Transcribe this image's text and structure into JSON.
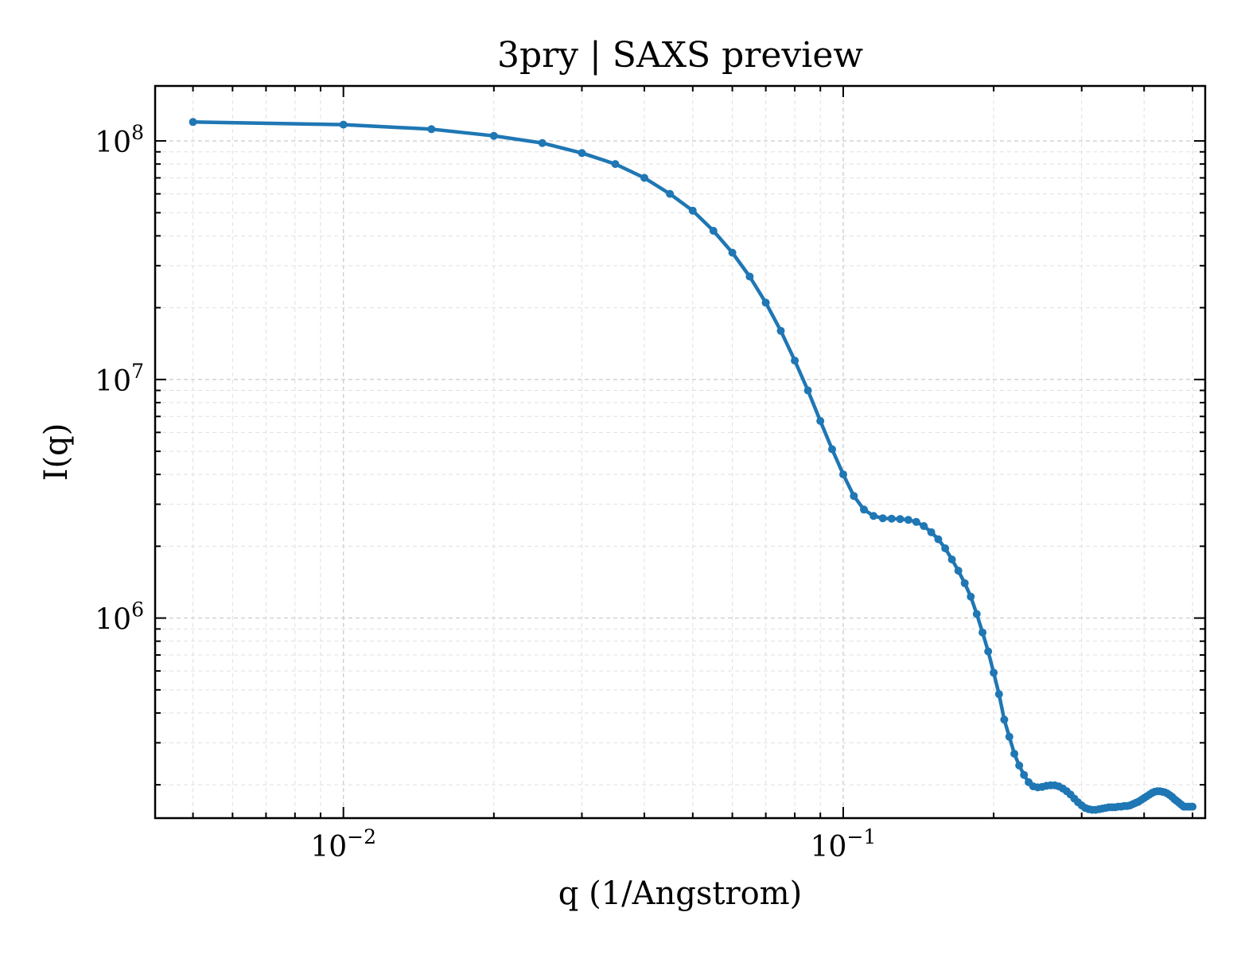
{
  "chart_data": {
    "type": "line",
    "title": "3pry | SAXS preview",
    "xlabel": "q (1/Angstrom)",
    "ylabel": "I(q)",
    "xscale": "log",
    "yscale": "log",
    "xlim": [
      0.0042,
      0.53
    ],
    "ylim": [
      145000,
      170000000
    ],
    "grid": true,
    "legend": "none",
    "series_color": "#1f77b4",
    "x_ticks": [
      {
        "value": 0.01,
        "base": "10",
        "exp": "−2"
      },
      {
        "value": 0.1,
        "base": "10",
        "exp": "−1"
      }
    ],
    "y_ticks": [
      {
        "value": 1000000,
        "base": "10",
        "exp": "6"
      },
      {
        "value": 10000000,
        "base": "10",
        "exp": "7"
      },
      {
        "value": 100000000,
        "base": "10",
        "exp": "8"
      }
    ],
    "series": [
      {
        "x": [
          0.005,
          0.01,
          0.015,
          0.02,
          0.025,
          0.03,
          0.035,
          0.04,
          0.045,
          0.05,
          0.055,
          0.06,
          0.065,
          0.07,
          0.075,
          0.08,
          0.085,
          0.09,
          0.095,
          0.1,
          0.105,
          0.11,
          0.115,
          0.12,
          0.125,
          0.13,
          0.135,
          0.14,
          0.145,
          0.15,
          0.155,
          0.16,
          0.165,
          0.17,
          0.175,
          0.18,
          0.185,
          0.19,
          0.195,
          0.2,
          0.205,
          0.21,
          0.215,
          0.22,
          0.225,
          0.23,
          0.235,
          0.24,
          0.245,
          0.25,
          0.255,
          0.26,
          0.265,
          0.27,
          0.275,
          0.28,
          0.285,
          0.29,
          0.295,
          0.3,
          0.305,
          0.31,
          0.315,
          0.32,
          0.325,
          0.33,
          0.335,
          0.34,
          0.345,
          0.35,
          0.355,
          0.36,
          0.365,
          0.37,
          0.375,
          0.38,
          0.385,
          0.39,
          0.395,
          0.4,
          0.405,
          0.41,
          0.415,
          0.42,
          0.425,
          0.43,
          0.435,
          0.44,
          0.445,
          0.45,
          0.455,
          0.46,
          0.465,
          0.47,
          0.475,
          0.48,
          0.485,
          0.49,
          0.495,
          0.5
        ],
        "y": [
          120000000,
          117000000,
          112000000,
          105000000,
          98000000,
          89000000,
          80000000,
          70000000,
          60000000,
          51000000,
          42000000,
          34000000,
          27000000,
          21000000,
          16000000,
          12000000,
          9000000,
          6700000,
          5100000,
          4000000,
          3250000,
          2850000,
          2680000,
          2620000,
          2610000,
          2600000,
          2580000,
          2530000,
          2430000,
          2290000,
          2140000,
          1960000,
          1760000,
          1580000,
          1400000,
          1230000,
          1040000,
          870000,
          725000,
          590000,
          480000,
          375000,
          318000,
          270000,
          241000,
          220000,
          205000,
          197000,
          195000,
          196000,
          198000,
          199000,
          199000,
          197000,
          193000,
          188000,
          182000,
          175000,
          169000,
          164000,
          160000,
          158000,
          157000,
          157000,
          158000,
          159000,
          160000,
          161000,
          161000,
          161000,
          162000,
          162000,
          163000,
          163000,
          164000,
          166000,
          168000,
          170000,
          173000,
          176000,
          179000,
          182000,
          185000,
          187000,
          188000,
          188000,
          187000,
          186000,
          184000,
          181000,
          178000,
          174000,
          171000,
          168000,
          165000,
          162000,
          162000,
          162000,
          162000,
          162000
        ]
      }
    ]
  }
}
